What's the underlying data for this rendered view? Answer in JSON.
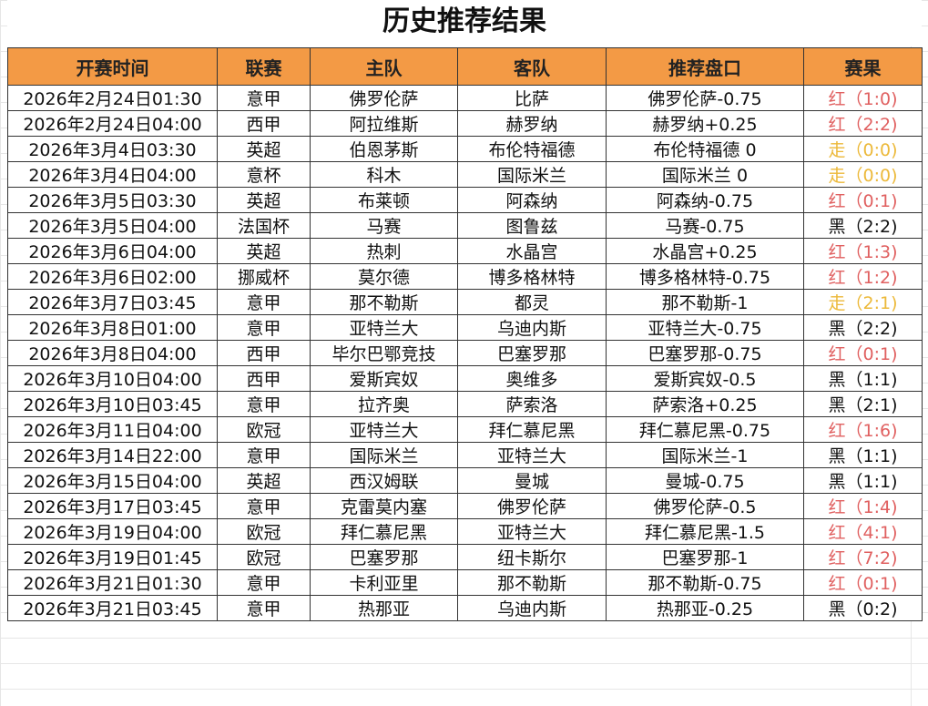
{
  "title": "历史推荐结果",
  "colors": {
    "header_bg": "#f39a45",
    "red": "#e06060",
    "yellow": "#ecb93a",
    "black": "#111111"
  },
  "columns": [
    "开赛时间",
    "联赛",
    "主队",
    "客队",
    "推荐盘口",
    "赛果"
  ],
  "rows": [
    {
      "time": "2026年2月24日01:30",
      "league": "意甲",
      "home": "佛罗伦萨",
      "away": "比萨",
      "pick": "佛罗伦萨-0.75",
      "result": "红（1:0)",
      "status": "red"
    },
    {
      "time": "2026年2月24日04:00",
      "league": "西甲",
      "home": "阿拉维斯",
      "away": "赫罗纳",
      "pick": "赫罗纳+0.25",
      "result": "红（2:2)",
      "status": "red"
    },
    {
      "time": "2026年3月4日03:30",
      "league": "英超",
      "home": "伯恩茅斯",
      "away": "布伦特福德",
      "pick": "布伦特福德 0",
      "result": "走（0:0)",
      "status": "yellow"
    },
    {
      "time": "2026年3月4日04:00",
      "league": "意杯",
      "home": "科木",
      "away": "国际米兰",
      "pick": "国际米兰 0",
      "result": "走（0:0)",
      "status": "yellow"
    },
    {
      "time": "2026年3月5日03:30",
      "league": "英超",
      "home": "布莱顿",
      "away": "阿森纳",
      "pick": "阿森纳-0.75",
      "result": "红（0:1)",
      "status": "red"
    },
    {
      "time": "2026年3月5日04:00",
      "league": "法国杯",
      "home": "马赛",
      "away": "图鲁兹",
      "pick": "马赛-0.75",
      "result": "黑（2:2)",
      "status": "black"
    },
    {
      "time": "2026年3月6日04:00",
      "league": "英超",
      "home": "热刺",
      "away": "水晶宫",
      "pick": "水晶宫+0.25",
      "result": "红（1:3)",
      "status": "red"
    },
    {
      "time": "2026年3月6日02:00",
      "league": "挪威杯",
      "home": "莫尔德",
      "away": "博多格林特",
      "pick": "博多格林特-0.75",
      "result": "红（1:2)",
      "status": "red"
    },
    {
      "time": "2026年3月7日03:45",
      "league": "意甲",
      "home": "那不勒斯",
      "away": "都灵",
      "pick": "那不勒斯-1",
      "result": "走（2:1)",
      "status": "yellow"
    },
    {
      "time": "2026年3月8日01:00",
      "league": "意甲",
      "home": "亚特兰大",
      "away": "乌迪内斯",
      "pick": "亚特兰大-0.75",
      "result": "黑（2:2)",
      "status": "black"
    },
    {
      "time": "2026年3月8日04:00",
      "league": "西甲",
      "home": "毕尔巴鄂竞技",
      "away": "巴塞罗那",
      "pick": "巴塞罗那-0.75",
      "result": "红（0:1)",
      "status": "red"
    },
    {
      "time": "2026年3月10日04:00",
      "league": "西甲",
      "home": "爱斯宾奴",
      "away": "奥维多",
      "pick": "爱斯宾奴-0.5",
      "result": "黑（1:1)",
      "status": "black"
    },
    {
      "time": "2026年3月10日03:45",
      "league": "意甲",
      "home": "拉齐奥",
      "away": "萨索洛",
      "pick": "萨索洛+0.25",
      "result": "黑（2:1)",
      "status": "black"
    },
    {
      "time": "2026年3月11日04:00",
      "league": "欧冠",
      "home": "亚特兰大",
      "away": "拜仁慕尼黑",
      "pick": "拜仁慕尼黑-0.75",
      "result": "红（1:6)",
      "status": "red"
    },
    {
      "time": "2026年3月14日22:00",
      "league": "意甲",
      "home": "国际米兰",
      "away": "亚特兰大",
      "pick": "国际米兰-1",
      "result": "黑（1:1)",
      "status": "black"
    },
    {
      "time": "2026年3月15日04:00",
      "league": "英超",
      "home": "西汉姆联",
      "away": "曼城",
      "pick": "曼城-0.75",
      "result": "黑（1:1)",
      "status": "black"
    },
    {
      "time": "2026年3月17日03:45",
      "league": "意甲",
      "home": "克雷莫内塞",
      "away": "佛罗伦萨",
      "pick": "佛罗伦萨-0.5",
      "result": "红（1:4)",
      "status": "red"
    },
    {
      "time": "2026年3月19日04:00",
      "league": "欧冠",
      "home": "拜仁慕尼黑",
      "away": "亚特兰大",
      "pick": "拜仁慕尼黑-1.5",
      "result": "红（4:1)",
      "status": "red"
    },
    {
      "time": "2026年3月19日01:45",
      "league": "欧冠",
      "home": "巴塞罗那",
      "away": "纽卡斯尔",
      "pick": "巴塞罗那-1",
      "result": "红（7:2)",
      "status": "red"
    },
    {
      "time": "2026年3月21日01:30",
      "league": "意甲",
      "home": "卡利亚里",
      "away": "那不勒斯",
      "pick": "那不勒斯-0.75",
      "result": "红（0:1)",
      "status": "red"
    },
    {
      "time": "2026年3月21日03:45",
      "league": "意甲",
      "home": "热那亚",
      "away": "乌迪内斯",
      "pick": "热那亚-0.25",
      "result": "黑（0:2)",
      "status": "black"
    }
  ]
}
